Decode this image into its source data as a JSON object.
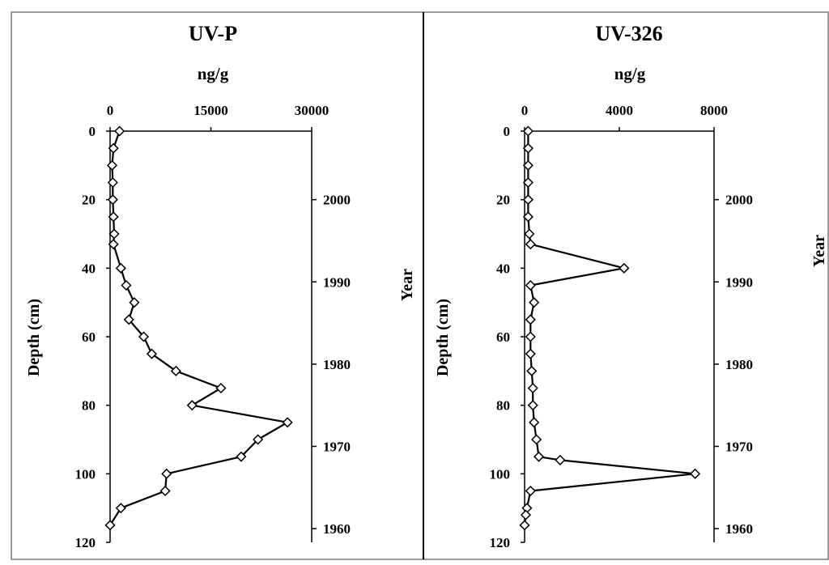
{
  "chart_data": [
    {
      "type": "line",
      "title": "UV-P",
      "xlabel": "ng/g",
      "ylabel": "Depth (cm)",
      "y2label": "Year",
      "xlim": [
        0,
        30000
      ],
      "ylim": [
        0,
        120
      ],
      "y_inverted": true,
      "x_ticks": [
        "0",
        "15000",
        "30000"
      ],
      "x_tick_values": [
        0,
        15000,
        30000
      ],
      "y_ticks": [
        "0",
        "20",
        "40",
        "60",
        "80",
        "100",
        "120"
      ],
      "y_tick_values": [
        0,
        20,
        40,
        60,
        80,
        100,
        120
      ],
      "y2_ticks": [
        "2000",
        "1990",
        "1980",
        "1970",
        "1960"
      ],
      "y2_tick_depths": [
        20,
        44,
        68,
        92,
        116
      ],
      "marker": "open-diamond",
      "grid": false,
      "series": [
        {
          "x": [
            1400,
            500,
            300,
            400,
            400,
            500,
            600,
            500,
            1600,
            2400,
            3600,
            2800,
            5000,
            6200,
            9800,
            16500,
            12200,
            26400,
            22000,
            19500,
            8400,
            8200,
            1600,
            0
          ],
          "y": [
            0,
            5,
            10,
            15,
            20,
            25,
            30,
            33,
            40,
            45,
            50,
            55,
            60,
            65,
            70,
            75,
            80,
            85,
            90,
            95,
            100,
            105,
            110,
            115
          ]
        }
      ]
    },
    {
      "type": "line",
      "title": "UV-326",
      "xlabel": "ng/g",
      "ylabel": "Depth (cm)",
      "y2label": "Year",
      "xlim": [
        0,
        8000
      ],
      "ylim": [
        0,
        120
      ],
      "y_inverted": true,
      "x_ticks": [
        "0",
        "4000",
        "8000"
      ],
      "x_tick_values": [
        0,
        4000,
        8000
      ],
      "y_ticks": [
        "0",
        "20",
        "40",
        "60",
        "80",
        "100",
        "120"
      ],
      "y_tick_values": [
        0,
        20,
        40,
        60,
        80,
        100,
        120
      ],
      "y2_ticks": [
        "2000",
        "1990",
        "1980",
        "1970",
        "1960"
      ],
      "y2_tick_depths": [
        20,
        44,
        68,
        92,
        116
      ],
      "marker": "open-diamond",
      "grid": false,
      "series": [
        {
          "x": [
            150,
            150,
            150,
            150,
            150,
            150,
            200,
            250,
            4200,
            250,
            400,
            250,
            250,
            250,
            300,
            350,
            350,
            400,
            500,
            600,
            1500,
            7200,
            250,
            100,
            50,
            0
          ],
          "y": [
            0,
            5,
            10,
            15,
            20,
            25,
            30,
            33,
            40,
            45,
            50,
            55,
            60,
            65,
            70,
            75,
            80,
            85,
            90,
            95,
            96,
            100,
            105,
            110,
            112,
            115
          ]
        }
      ]
    }
  ]
}
